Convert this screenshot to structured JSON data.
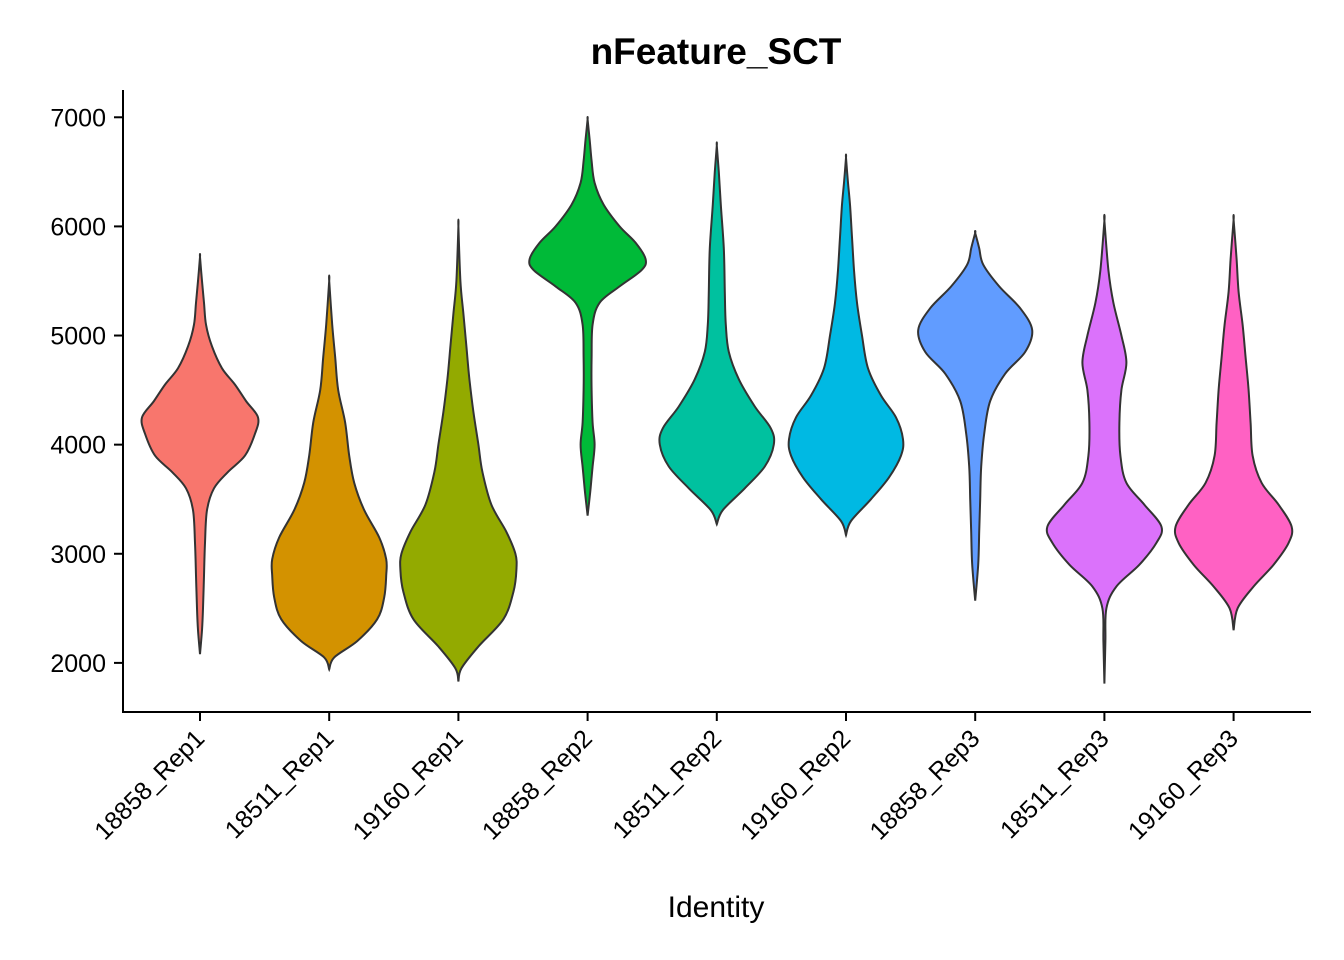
{
  "chart_data": {
    "type": "violin",
    "title": "nFeature_SCT",
    "xlabel": "Identity",
    "ylabel": "",
    "ylim": [
      1550,
      7250
    ],
    "yticks": [
      2000,
      3000,
      4000,
      5000,
      6000,
      7000
    ],
    "grid": false,
    "legend": "none",
    "series": [
      {
        "category": "18858_Rep1",
        "color": "#F8766D",
        "profile": [
          [
            2080,
            0
          ],
          [
            2300,
            2
          ],
          [
            2500,
            3
          ],
          [
            2800,
            4
          ],
          [
            3100,
            5
          ],
          [
            3400,
            7
          ],
          [
            3600,
            14
          ],
          [
            3750,
            28
          ],
          [
            3900,
            45
          ],
          [
            4100,
            55
          ],
          [
            4250,
            58
          ],
          [
            4400,
            46
          ],
          [
            4550,
            35
          ],
          [
            4700,
            22
          ],
          [
            4900,
            12
          ],
          [
            5100,
            6
          ],
          [
            5300,
            4
          ],
          [
            5500,
            2
          ],
          [
            5720,
            0
          ]
        ]
      },
      {
        "category": "18511_Rep1",
        "color": "#D39200",
        "profile": [
          [
            1940,
            0
          ],
          [
            2050,
            5
          ],
          [
            2200,
            28
          ],
          [
            2400,
            48
          ],
          [
            2600,
            55
          ],
          [
            2800,
            57
          ],
          [
            2950,
            57
          ],
          [
            3150,
            50
          ],
          [
            3400,
            35
          ],
          [
            3650,
            25
          ],
          [
            3900,
            20
          ],
          [
            4200,
            16
          ],
          [
            4500,
            9
          ],
          [
            4800,
            6
          ],
          [
            5100,
            3
          ],
          [
            5500,
            0
          ]
        ]
      },
      {
        "category": "19160_Rep1",
        "color": "#93AA00",
        "profile": [
          [
            1830,
            0
          ],
          [
            1950,
            3
          ],
          [
            2150,
            20
          ],
          [
            2400,
            45
          ],
          [
            2650,
            55
          ],
          [
            2850,
            58
          ],
          [
            3000,
            57
          ],
          [
            3200,
            48
          ],
          [
            3450,
            33
          ],
          [
            3750,
            24
          ],
          [
            4000,
            20
          ],
          [
            4300,
            15
          ],
          [
            4600,
            11
          ],
          [
            4900,
            8
          ],
          [
            5200,
            5
          ],
          [
            5500,
            2
          ],
          [
            6000,
            0
          ]
        ]
      },
      {
        "category": "18858_Rep2",
        "color": "#00BA38",
        "profile": [
          [
            3350,
            0
          ],
          [
            3600,
            3
          ],
          [
            3800,
            5
          ],
          [
            4000,
            7
          ],
          [
            4200,
            5
          ],
          [
            4500,
            4
          ],
          [
            4800,
            4
          ],
          [
            5100,
            5
          ],
          [
            5300,
            12
          ],
          [
            5450,
            32
          ],
          [
            5600,
            54
          ],
          [
            5700,
            58
          ],
          [
            5850,
            48
          ],
          [
            6000,
            32
          ],
          [
            6200,
            16
          ],
          [
            6400,
            7
          ],
          [
            6600,
            4
          ],
          [
            6800,
            2
          ],
          [
            6980,
            0
          ]
        ]
      },
      {
        "category": "18511_Rep2",
        "color": "#00C19F",
        "profile": [
          [
            3270,
            0
          ],
          [
            3400,
            6
          ],
          [
            3600,
            28
          ],
          [
            3800,
            48
          ],
          [
            4000,
            57
          ],
          [
            4150,
            54
          ],
          [
            4350,
            38
          ],
          [
            4600,
            22
          ],
          [
            4850,
            12
          ],
          [
            5100,
            9
          ],
          [
            5400,
            8
          ],
          [
            5800,
            7
          ],
          [
            6200,
            4
          ],
          [
            6500,
            2
          ],
          [
            6740,
            0
          ]
        ]
      },
      {
        "category": "19160_Rep2",
        "color": "#00B9E3",
        "profile": [
          [
            3170,
            0
          ],
          [
            3300,
            5
          ],
          [
            3500,
            25
          ],
          [
            3700,
            43
          ],
          [
            3900,
            55
          ],
          [
            4050,
            57
          ],
          [
            4250,
            50
          ],
          [
            4450,
            35
          ],
          [
            4700,
            22
          ],
          [
            5000,
            16
          ],
          [
            5300,
            11
          ],
          [
            5600,
            8
          ],
          [
            5900,
            6
          ],
          [
            6200,
            4
          ],
          [
            6400,
            2
          ],
          [
            6630,
            0
          ]
        ]
      },
      {
        "category": "18858_Rep3",
        "color": "#619CFF",
        "profile": [
          [
            2570,
            0
          ],
          [
            2900,
            3
          ],
          [
            3200,
            4
          ],
          [
            3500,
            5
          ],
          [
            3800,
            6
          ],
          [
            4100,
            9
          ],
          [
            4400,
            15
          ],
          [
            4650,
            30
          ],
          [
            4850,
            50
          ],
          [
            5050,
            57
          ],
          [
            5250,
            45
          ],
          [
            5450,
            24
          ],
          [
            5650,
            8
          ],
          [
            5800,
            4
          ],
          [
            5940,
            0
          ]
        ]
      },
      {
        "category": "18511_Rep3",
        "color": "#DB72FB",
        "profile": [
          [
            1810,
            0
          ],
          [
            2200,
            1
          ],
          [
            2500,
            2
          ],
          [
            2700,
            12
          ],
          [
            2900,
            35
          ],
          [
            3100,
            52
          ],
          [
            3250,
            57
          ],
          [
            3450,
            40
          ],
          [
            3650,
            22
          ],
          [
            3900,
            16
          ],
          [
            4200,
            15
          ],
          [
            4500,
            17
          ],
          [
            4750,
            22
          ],
          [
            5000,
            17
          ],
          [
            5300,
            9
          ],
          [
            5600,
            4
          ],
          [
            6050,
            0
          ]
        ]
      },
      {
        "category": "19160_Rep3",
        "color": "#FF61C3",
        "profile": [
          [
            2300,
            0
          ],
          [
            2500,
            4
          ],
          [
            2700,
            20
          ],
          [
            2900,
            40
          ],
          [
            3100,
            55
          ],
          [
            3250,
            58
          ],
          [
            3450,
            45
          ],
          [
            3650,
            28
          ],
          [
            3900,
            19
          ],
          [
            4200,
            17
          ],
          [
            4500,
            15
          ],
          [
            4800,
            12
          ],
          [
            5100,
            9
          ],
          [
            5400,
            5
          ],
          [
            5700,
            3
          ],
          [
            6060,
            0
          ]
        ]
      }
    ]
  }
}
